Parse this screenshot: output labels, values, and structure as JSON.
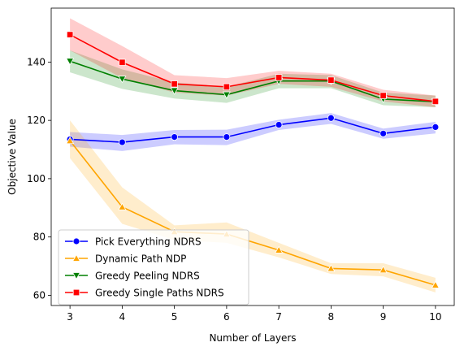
{
  "chart_data": {
    "type": "line",
    "title": "",
    "xlabel": "Number of Layers",
    "ylabel": "Objective Value",
    "x": [
      3,
      4,
      5,
      6,
      7,
      8,
      9,
      10
    ],
    "xlim": [
      2.64,
      10.36
    ],
    "ylim": [
      56.5,
      158.5
    ],
    "xticks": [
      3,
      4,
      5,
      6,
      7,
      8,
      9,
      10
    ],
    "yticks": [
      60,
      80,
      100,
      120,
      140
    ],
    "grid": false,
    "legend_position": "lower-left",
    "series": [
      {
        "name": "Pick Everything NDRS",
        "color": "#0000ff",
        "marker": "circle",
        "values": [
          113.5,
          112.5,
          114.3,
          114.3,
          118.5,
          120.8,
          115.5,
          117.7
        ],
        "lower": [
          111.0,
          109.5,
          111.8,
          111.5,
          116.7,
          118.8,
          113.7,
          115.5
        ],
        "upper": [
          116.0,
          115.0,
          116.7,
          116.8,
          120.2,
          122.5,
          117.2,
          119.5
        ]
      },
      {
        "name": "Dynamic Path NDP",
        "color": "#ffa500",
        "marker": "triangle-up",
        "values": [
          113.0,
          90.3,
          81.8,
          81.0,
          75.5,
          69.2,
          68.7,
          63.5
        ],
        "lower": [
          107.0,
          84.5,
          79.0,
          78.0,
          73.0,
          67.3,
          66.5,
          61.0
        ],
        "upper": [
          120.0,
          97.0,
          84.0,
          85.0,
          78.0,
          71.0,
          71.0,
          66.0
        ]
      },
      {
        "name": "Greedy Peeling NDRS",
        "color": "#008000",
        "marker": "triangle-down",
        "values": [
          140.3,
          134.2,
          130.2,
          128.8,
          133.5,
          133.5,
          127.3,
          126.4
        ],
        "lower": [
          136.5,
          130.8,
          127.5,
          126.0,
          131.0,
          131.0,
          125.2,
          124.5
        ],
        "upper": [
          144.0,
          137.5,
          133.0,
          131.5,
          136.0,
          135.5,
          129.5,
          128.5
        ]
      },
      {
        "name": "Greedy Single Paths NDRS",
        "color": "#ff0000",
        "marker": "square",
        "values": [
          149.4,
          139.9,
          132.5,
          131.5,
          134.7,
          133.8,
          128.5,
          126.5
        ],
        "lower": [
          144.0,
          134.5,
          129.5,
          128.5,
          132.5,
          131.5,
          126.5,
          124.5
        ],
        "upper": [
          155.0,
          145.5,
          135.5,
          134.5,
          137.0,
          136.0,
          130.5,
          128.5
        ]
      }
    ]
  }
}
